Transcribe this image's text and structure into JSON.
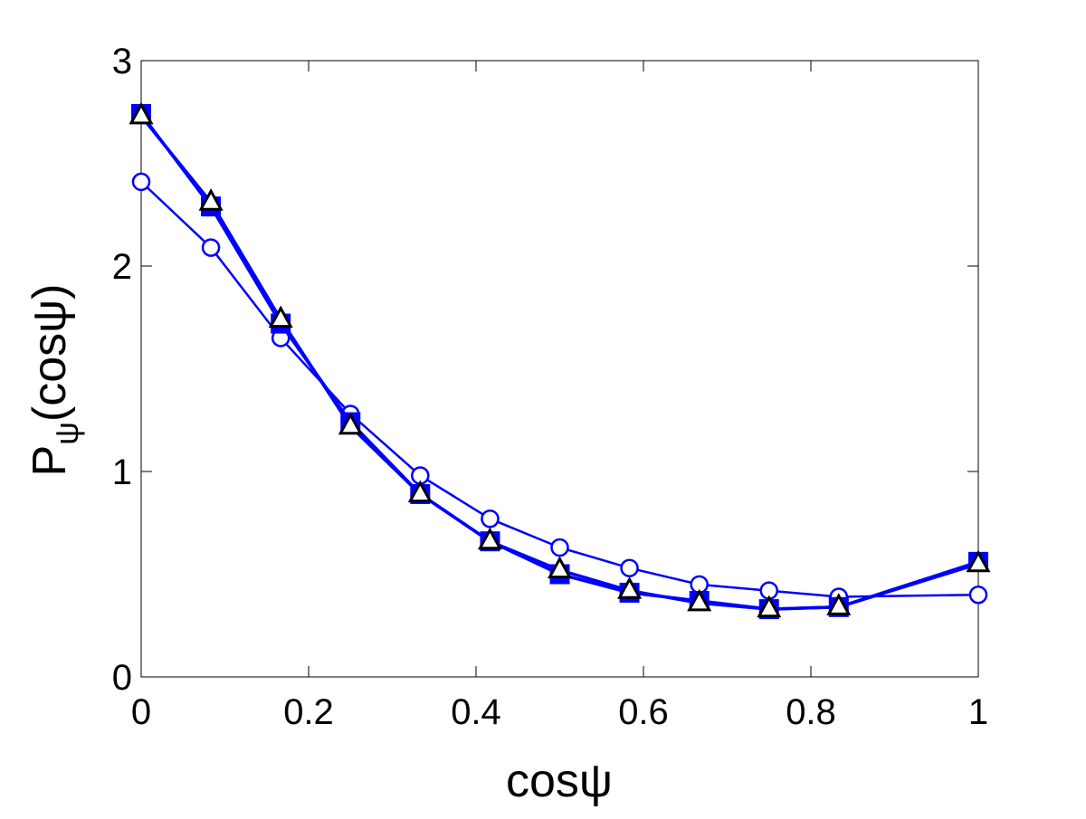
{
  "chart_data": {
    "type": "line",
    "title": "",
    "xlabel": "cosψ",
    "ylabel": {
      "main": "P",
      "subscript": "ψ",
      "arg": "(cosψ)"
    },
    "xlim": [
      0,
      1
    ],
    "ylim": [
      0,
      3
    ],
    "xticks": [
      0,
      0.2,
      0.4,
      0.6,
      0.8,
      1
    ],
    "xtick_labels": [
      "0",
      "0.2",
      "0.4",
      "0.6",
      "0.8",
      "1"
    ],
    "yticks": [
      0,
      1,
      2,
      3
    ],
    "ytick_labels": [
      "0",
      "1",
      "2",
      "3"
    ],
    "grid": false,
    "legend": "none",
    "series": [
      {
        "marker": "circle",
        "color": "#0000ff",
        "fill": "#ffffff",
        "x": [
          0,
          0.0833,
          0.1667,
          0.25,
          0.3333,
          0.4167,
          0.5,
          0.5833,
          0.6667,
          0.75,
          0.8333,
          1
        ],
        "y": [
          2.41,
          2.09,
          1.65,
          1.28,
          0.98,
          0.77,
          0.63,
          0.53,
          0.45,
          0.42,
          0.39,
          0.4
        ]
      },
      {
        "marker": "square",
        "color": "#0000ff",
        "fill": "#0000ff",
        "x": [
          0,
          0.0833,
          0.1667,
          0.25,
          0.3333,
          0.4167,
          0.5,
          0.5833,
          0.6667,
          0.75,
          0.8333,
          1
        ],
        "y": [
          2.74,
          2.29,
          1.72,
          1.24,
          0.89,
          0.66,
          0.5,
          0.41,
          0.37,
          0.33,
          0.34,
          0.56
        ]
      },
      {
        "marker": "triangle",
        "color": "#0000ff",
        "edge": "#000000",
        "fill": "#ffffff",
        "x": [
          0,
          0.0833,
          0.1667,
          0.25,
          0.3333,
          0.4167,
          0.5,
          0.5833,
          0.6667,
          0.75,
          0.8333,
          1
        ],
        "y": [
          2.73,
          2.31,
          1.74,
          1.22,
          0.89,
          0.66,
          0.52,
          0.42,
          0.36,
          0.33,
          0.34,
          0.55
        ]
      }
    ]
  }
}
